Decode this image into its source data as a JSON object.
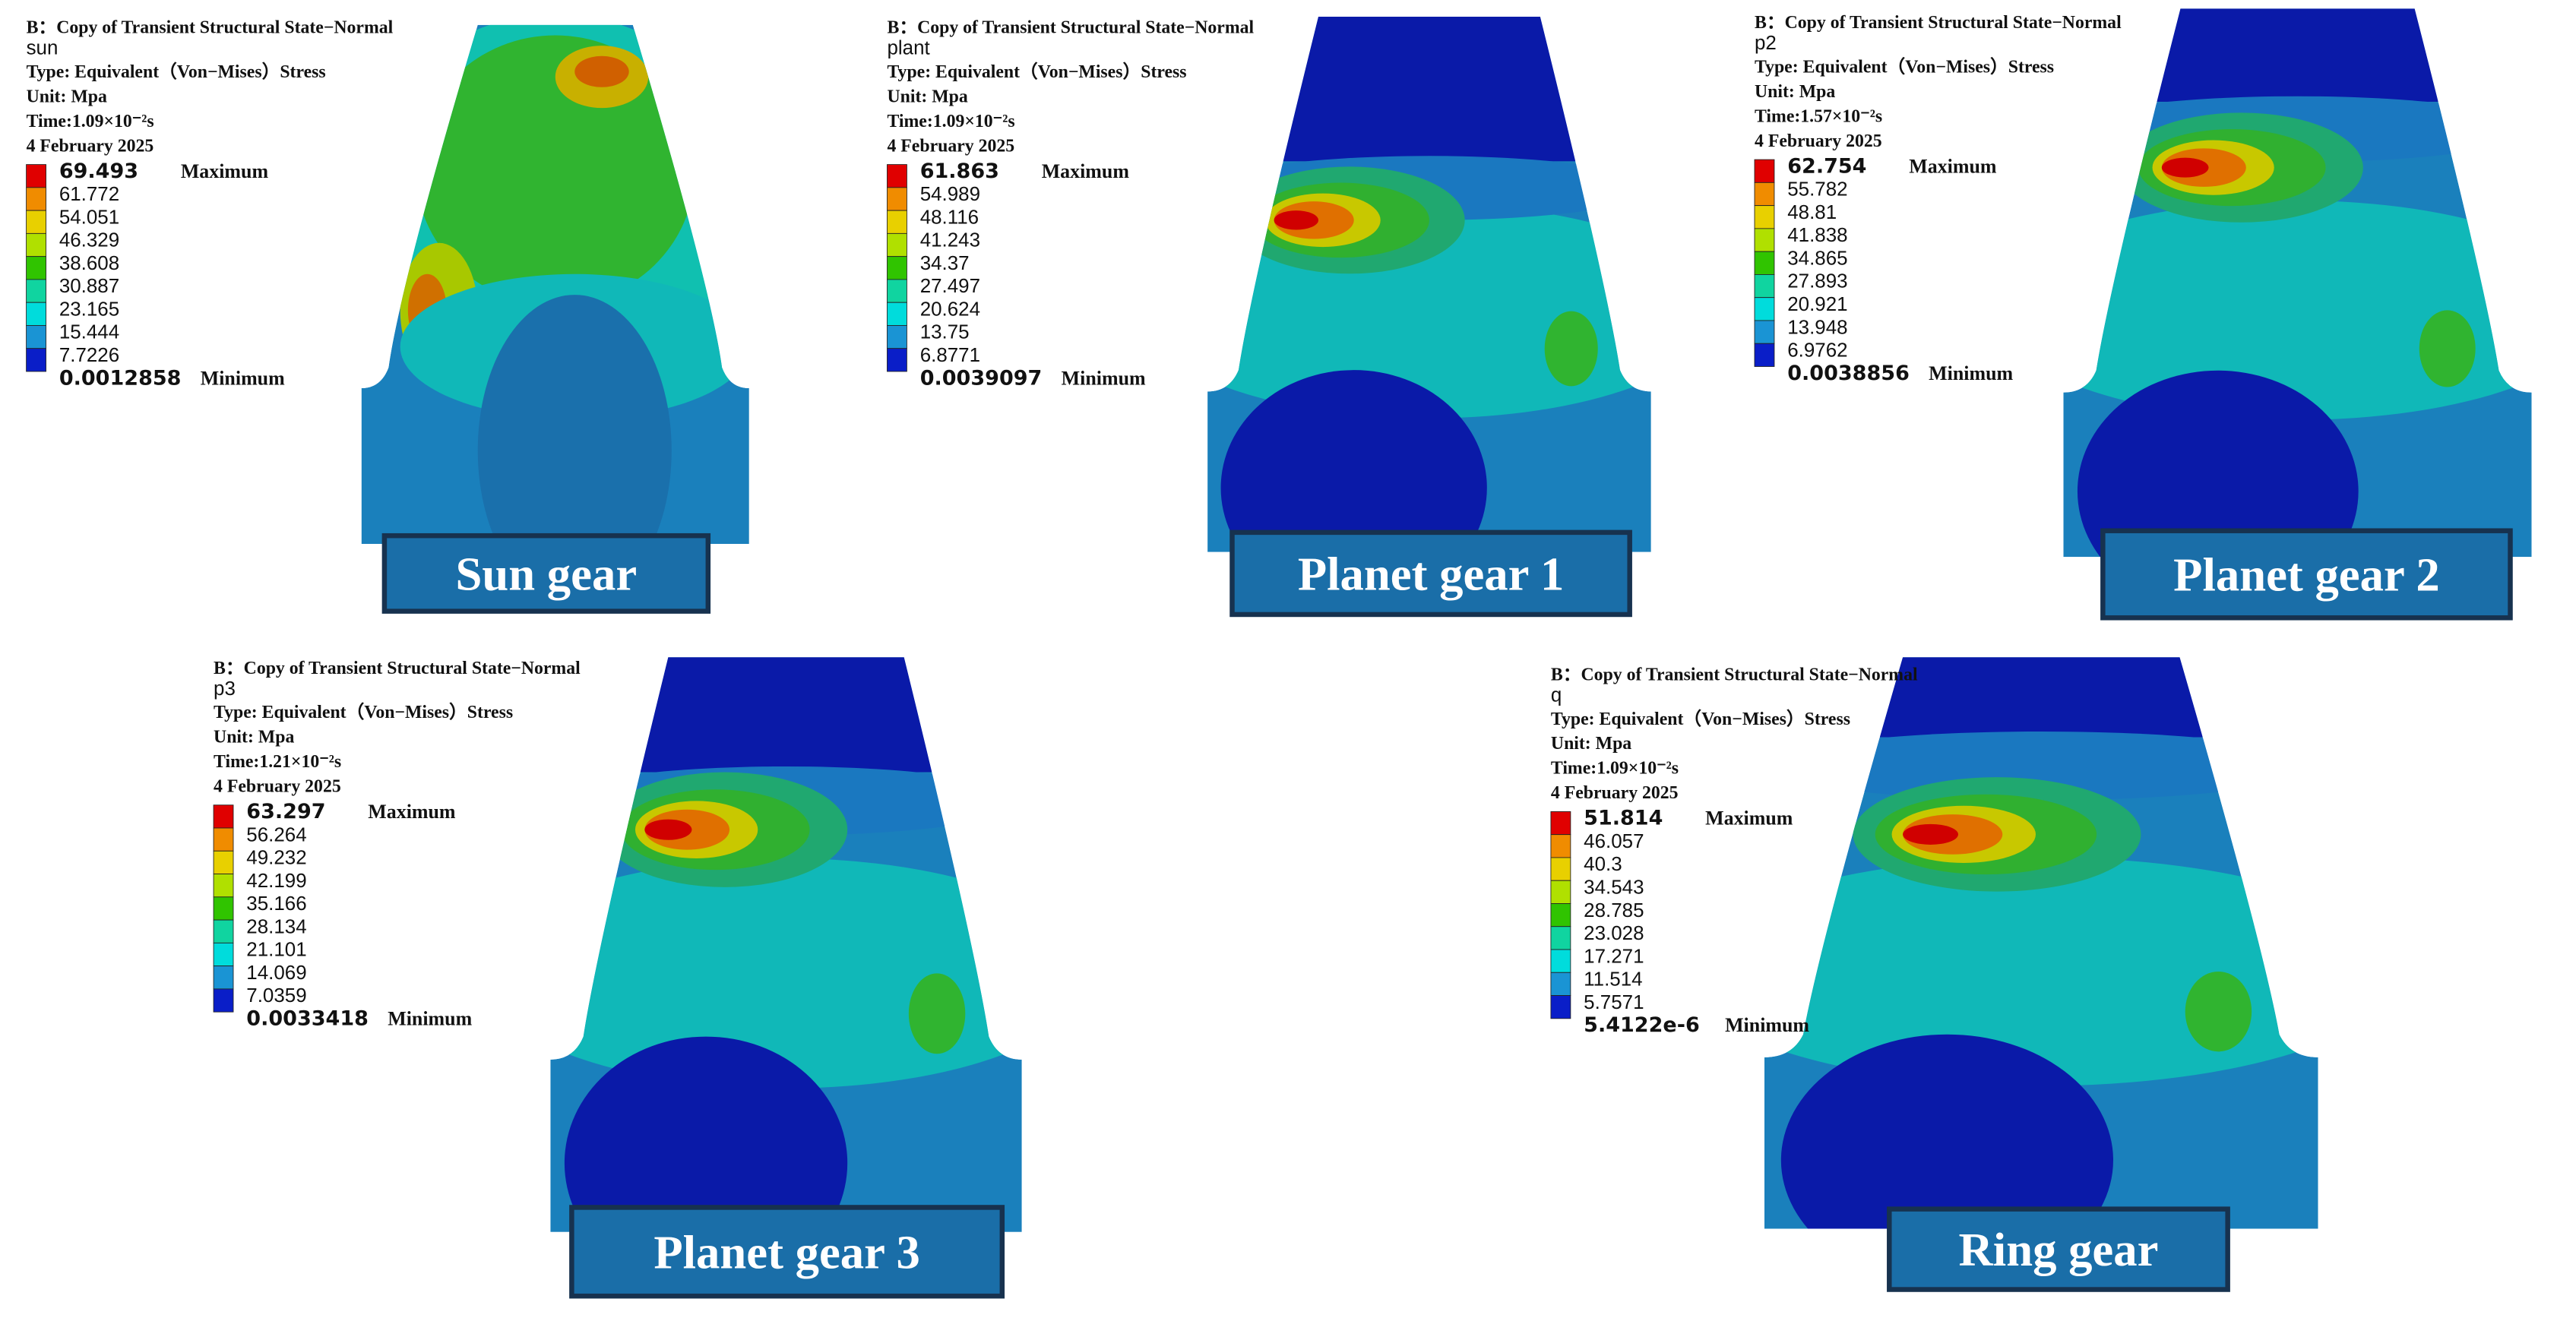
{
  "panels": [
    {
      "header": "B：Copy of Transient Structural State−Normal",
      "name": "sun",
      "type": "Type: Equivalent（Von−Mises）Stress",
      "unit": "Unit: Mpa",
      "time": "Time:1.09×10⁻²s",
      "date": "4 February 2025",
      "maximum": {
        "value": "69.493",
        "label": "Maximum"
      },
      "levels": [
        "61.772",
        "54.051",
        "46.329",
        "38.608",
        "30.887",
        "23.165",
        "15.444",
        "7.7226"
      ],
      "minimum": {
        "value": "0.0012858",
        "label": "Minimum"
      },
      "title": "Sun gear"
    },
    {
      "header": "B：Copy of Transient Structural State−Normal",
      "name": "plant",
      "type": "Type: Equivalent（Von−Mises）Stress",
      "unit": "Unit: Mpa",
      "time": "Time:1.09×10⁻²s",
      "date": "4 February 2025",
      "maximum": {
        "value": "61.863",
        "label": "Maximum"
      },
      "levels": [
        "54.989",
        "48.116",
        "41.243",
        "34.37",
        "27.497",
        "20.624",
        "13.75",
        "6.8771"
      ],
      "minimum": {
        "value": "0.0039097",
        "label": "Minimum"
      },
      "title": "Planet gear 1"
    },
    {
      "header": "B：Copy of Transient Structural State−Normal",
      "name": "p2",
      "type": "Type: Equivalent（Von−Mises）Stress",
      "unit": "Unit: Mpa",
      "time": "Time:1.57×10⁻²s",
      "date": "4 February 2025",
      "maximum": {
        "value": "62.754",
        "label": "Maximum"
      },
      "levels": [
        "55.782",
        "48.81",
        "41.838",
        "34.865",
        "27.893",
        "20.921",
        "13.948",
        "6.9762"
      ],
      "minimum": {
        "value": "0.0038856",
        "label": "Minimum"
      },
      "title": "Planet gear 2"
    },
    {
      "header": "B：Copy of Transient Structural State−Normal",
      "name": "p3",
      "type": "Type: Equivalent（Von−Mises）Stress",
      "unit": "Unit: Mpa",
      "time": "Time:1.21×10⁻²s",
      "date": "4 February 2025",
      "maximum": {
        "value": "63.297",
        "label": "Maximum"
      },
      "levels": [
        "56.264",
        "49.232",
        "42.199",
        "35.166",
        "28.134",
        "21.101",
        "14.069",
        "7.0359"
      ],
      "minimum": {
        "value": "0.0033418",
        "label": "Minimum"
      },
      "title": "Planet gear 3"
    },
    {
      "header": "B：Copy of Transient Structural State−Normal",
      "name": "q",
      "type": "Type: Equivalent（Von−Mises）Stress",
      "unit": "Unit: Mpa",
      "time": "Time:1.09×10⁻²s",
      "date": "4 February 2025",
      "maximum": {
        "value": "51.814",
        "label": "Maximum"
      },
      "levels": [
        "46.057",
        "40.3",
        "34.543",
        "28.785",
        "23.028",
        "17.271",
        "11.514",
        "5.7571"
      ],
      "minimum": {
        "value": "5.4122e-6",
        "label": "Minimum"
      },
      "title": "Ring gear"
    }
  ]
}
